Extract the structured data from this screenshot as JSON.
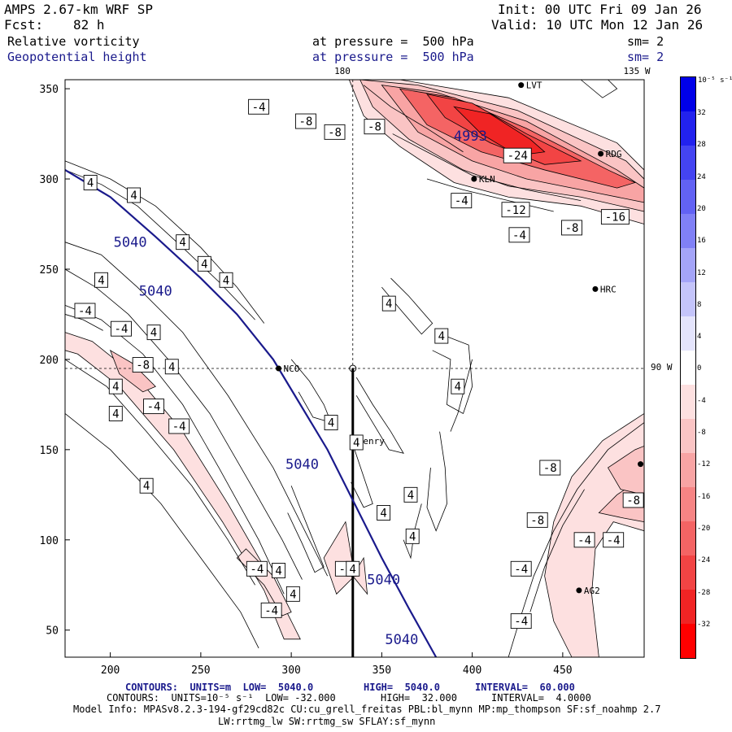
{
  "header": {
    "model": "AMPS 2.67-km WRF SP",
    "init": "Init: 00 UTC Fri 09 Jan 26",
    "fcst_label": "Fcst:",
    "fcst_value": "82 h",
    "valid": "Valid: 10 UTC Mon 12 Jan 26",
    "field1_name": "Relative vorticity",
    "field1_level": "at pressure =  500 hPa",
    "field1_sm": "sm= 2",
    "field2_name": "Geopotential height",
    "field2_level": "at pressure =  500 hPa",
    "field2_sm": "sm= 2"
  },
  "map_labels": {
    "lon_top_180": "180",
    "lon_top_135": "135 W",
    "lon_right_90": "90 W"
  },
  "stations": [
    {
      "name": "LVT",
      "x": 427,
      "y": 352
    },
    {
      "name": "RDG",
      "x": 471,
      "y": 314
    },
    {
      "name": "KLN",
      "x": 401,
      "y": 300
    },
    {
      "name": "HRC",
      "x": 468,
      "y": 239
    },
    {
      "name": "NCO",
      "x": 293,
      "y": 195
    },
    {
      "name": "Henry",
      "x": 334,
      "y": 155
    },
    {
      "name": "AG2",
      "x": 459,
      "y": 72
    },
    {
      "name": "",
      "x": 493,
      "y": 142
    }
  ],
  "axes": {
    "x_ticks": [
      "200",
      "250",
      "300",
      "350",
      "400",
      "450"
    ],
    "y_ticks": [
      "350",
      "300",
      "250",
      "200",
      "150",
      "100",
      "50"
    ]
  },
  "height_labels": [
    {
      "text": "5040",
      "x": 211,
      "y": 265
    },
    {
      "text": "5040",
      "x": 225,
      "y": 238
    },
    {
      "text": "5040",
      "x": 306,
      "y": 142
    },
    {
      "text": "5040",
      "x": 351,
      "y": 78
    },
    {
      "text": "5040",
      "x": 361,
      "y": 45
    },
    {
      "text": "4993",
      "x": 399,
      "y": 324
    }
  ],
  "vort_labels": [
    {
      "text": "-4",
      "x": 282,
      "y": 340
    },
    {
      "text": "-8",
      "x": 308,
      "y": 332
    },
    {
      "text": "-8",
      "x": 324,
      "y": 326
    },
    {
      "text": "-8",
      "x": 346,
      "y": 329
    },
    {
      "text": "-24",
      "x": 425,
      "y": 313
    },
    {
      "text": "-4",
      "x": 394,
      "y": 288
    },
    {
      "text": "-12",
      "x": 424,
      "y": 283
    },
    {
      "text": "-4",
      "x": 426,
      "y": 269
    },
    {
      "text": "-8",
      "x": 455,
      "y": 273
    },
    {
      "text": "-16",
      "x": 479,
      "y": 279
    },
    {
      "text": "4",
      "x": 189,
      "y": 298
    },
    {
      "text": "4",
      "x": 213,
      "y": 291
    },
    {
      "text": "4",
      "x": 240,
      "y": 265
    },
    {
      "text": "4",
      "x": 252,
      "y": 253
    },
    {
      "text": "4",
      "x": 264,
      "y": 244
    },
    {
      "text": "4",
      "x": 195,
      "y": 244
    },
    {
      "text": "-4",
      "x": 186,
      "y": 227
    },
    {
      "text": "-4",
      "x": 206,
      "y": 217
    },
    {
      "text": "4",
      "x": 224,
      "y": 215
    },
    {
      "text": "-8",
      "x": 218,
      "y": 197
    },
    {
      "text": "4",
      "x": 234,
      "y": 196
    },
    {
      "text": "4",
      "x": 203,
      "y": 185
    },
    {
      "text": "-4",
      "x": 224,
      "y": 174
    },
    {
      "text": "4",
      "x": 203,
      "y": 170
    },
    {
      "text": "-4",
      "x": 238,
      "y": 163
    },
    {
      "text": "4",
      "x": 220,
      "y": 130
    },
    {
      "text": "4",
      "x": 354,
      "y": 231
    },
    {
      "text": "4",
      "x": 383,
      "y": 213
    },
    {
      "text": "4",
      "x": 322,
      "y": 165
    },
    {
      "text": "4",
      "x": 336,
      "y": 154
    },
    {
      "text": "4",
      "x": 392,
      "y": 185
    },
    {
      "text": "4",
      "x": 366,
      "y": 125
    },
    {
      "text": "4",
      "x": 351,
      "y": 115
    },
    {
      "text": "4",
      "x": 367,
      "y": 102
    },
    {
      "text": "-8",
      "x": 443,
      "y": 140
    },
    {
      "text": "-8",
      "x": 489,
      "y": 122
    },
    {
      "text": "-8",
      "x": 436,
      "y": 111
    },
    {
      "text": "-4",
      "x": 462,
      "y": 100
    },
    {
      "text": "-4",
      "x": 478,
      "y": 100
    },
    {
      "text": "-4",
      "x": 427,
      "y": 84
    },
    {
      "text": "-4",
      "x": 427,
      "y": 55
    },
    {
      "text": "-4",
      "x": 281,
      "y": 84
    },
    {
      "text": "4",
      "x": 293,
      "y": 83
    },
    {
      "text": "4",
      "x": 301,
      "y": 70
    },
    {
      "text": "-4",
      "x": 289,
      "y": 61
    },
    {
      "text": "-4",
      "x": 330,
      "y": 84
    },
    {
      "text": "4",
      "x": 334,
      "y": 84
    }
  ],
  "colorbar": {
    "units": "10⁻⁵ s⁻¹",
    "ticks": [
      "32",
      "28",
      "24",
      "20",
      "16",
      "12",
      "8",
      "4",
      "0",
      "-4",
      "-8",
      "-12",
      "-16",
      "-20",
      "-24",
      "-28",
      "-32"
    ],
    "colors": [
      "#0000e8",
      "#2222ee",
      "#4444f2",
      "#6262f4",
      "#8080f6",
      "#a4a4f8",
      "#c4c4fa",
      "#e4e4fc",
      "#ffffff",
      "#fde0e0",
      "#fac4c4",
      "#f8a4a4",
      "#f68484",
      "#f46464",
      "#f24444",
      "#f02424",
      "#ff0000"
    ]
  },
  "footer": {
    "line1_a": "CONTOURS:  UNITS=m  LOW=  5040.0",
    "line1_b": "HIGH=  5040.0",
    "line1_c": "INTERVAL=  60.000",
    "line2_a": "CONTOURS:  UNITS=10⁻⁵ s⁻¹  LOW= -32.000",
    "line2_b": "HIGH=  32.000",
    "line2_c": "INTERVAL=  4.0000",
    "line3": "Model Info: MPASv8.2.3-194-gf29cd82c CU:cu_grell_freitas PBL:bl_mynn MP:mp_thompson SF:sf_noahmp 2.7",
    "line4": "LW:rrtmg_lw SW:rrtmg_sw SFLAY:sf_mynn"
  }
}
